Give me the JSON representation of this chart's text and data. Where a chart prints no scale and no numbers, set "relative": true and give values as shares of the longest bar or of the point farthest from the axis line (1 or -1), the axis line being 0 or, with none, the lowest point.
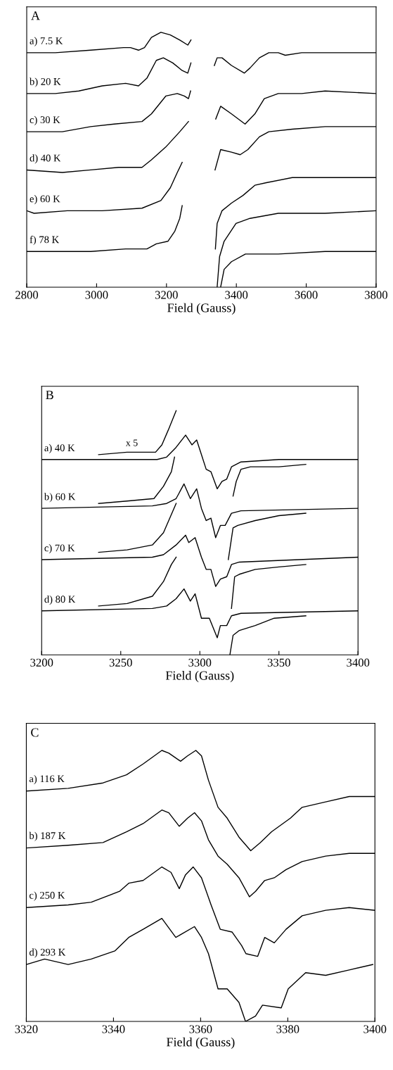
{
  "chart_data": [
    {
      "type": "line",
      "relative": true,
      "xlabel": "Field (Gauss)",
      "xlim": [
        2800,
        3800
      ],
      "xticks": [
        2800,
        3000,
        3200,
        3400,
        3600,
        3800
      ],
      "grid": false,
      "legend": false,
      "annotations": [
        "A"
      ],
      "series": [
        {
          "name": "a) 7.5 K",
          "color": "#000000",
          "x": [
            2800,
            2882,
            2983,
            3077,
            3097,
            3120,
            3137,
            3157,
            3184,
            3211,
            3238,
            3261,
            3270,
            3300,
            3337,
            3345,
            3359,
            3386,
            3423,
            3439,
            3466,
            3493,
            3520,
            3540,
            3587,
            3688,
            3800
          ],
          "values": [
            0.92,
            0.92,
            0.93,
            0.94,
            0.94,
            0.93,
            0.94,
            0.98,
            1.0,
            0.99,
            0.97,
            0.95,
            0.97,
            null,
            0.87,
            0.9,
            0.9,
            0.87,
            0.84,
            0.86,
            0.9,
            0.92,
            0.92,
            0.91,
            0.92,
            0.92,
            0.92
          ]
        },
        {
          "name": "b) 20 K",
          "color": "#000000",
          "x": [
            2800,
            2882,
            2949,
            3016,
            3083,
            3120,
            3144,
            3171,
            3191,
            3218,
            3245,
            3261,
            3270,
            3300,
            3341,
            3355,
            3386,
            3425,
            3453,
            3480,
            3520,
            3587,
            3654,
            3800
          ],
          "values": [
            0.76,
            0.76,
            0.77,
            0.79,
            0.8,
            0.79,
            0.82,
            0.89,
            0.9,
            0.88,
            0.85,
            0.84,
            0.88,
            null,
            0.66,
            0.71,
            0.68,
            0.64,
            0.68,
            0.74,
            0.76,
            0.76,
            0.77,
            0.76
          ]
        },
        {
          "name": "c) 30 K",
          "color": "#000000",
          "x": [
            2800,
            2902,
            2983,
            3050,
            3130,
            3157,
            3198,
            3231,
            3251,
            3263,
            3269,
            3300,
            3339,
            3355,
            3386,
            3411,
            3433,
            3466,
            3493,
            3560,
            3654,
            3800
          ],
          "values": [
            0.61,
            0.61,
            0.63,
            0.64,
            0.65,
            0.68,
            0.75,
            0.76,
            0.75,
            0.74,
            0.77,
            null,
            0.46,
            0.54,
            0.53,
            0.52,
            0.54,
            0.59,
            0.61,
            0.62,
            0.63,
            0.63
          ]
        },
        {
          "name": "d) 40 K",
          "color": "#000000",
          "x": [
            2800,
            2902,
            2983,
            3063,
            3130,
            3157,
            3198,
            3238,
            3263,
            3300,
            3340,
            3345,
            3359,
            3386,
            3419,
            3453,
            3486,
            3560,
            3654,
            3800
          ],
          "values": [
            0.46,
            0.45,
            0.46,
            0.47,
            0.47,
            0.5,
            0.55,
            0.61,
            0.65,
            null,
            0.15,
            0.25,
            0.3,
            0.33,
            0.36,
            0.4,
            0.41,
            0.43,
            0.43,
            0.43
          ]
        },
        {
          "name": "e) 60 K",
          "color": "#000000",
          "x": [
            2800,
            2821,
            2916,
            3016,
            3130,
            3184,
            3211,
            3231,
            3245,
            3300,
            3345,
            3352,
            3365,
            3399,
            3439,
            3520,
            3654,
            3800
          ],
          "values": [
            0.3,
            0.29,
            0.3,
            0.3,
            0.31,
            0.34,
            0.39,
            0.45,
            0.49,
            null,
            0.0,
            0.12,
            0.18,
            0.25,
            0.27,
            0.29,
            0.29,
            0.3
          ]
        },
        {
          "name": "f) 78 K",
          "color": "#000000",
          "x": [
            2800,
            2882,
            2983,
            3083,
            3144,
            3171,
            3204,
            3224,
            3238,
            3245,
            3300,
            3355,
            3365,
            3386,
            3426,
            3520,
            3654,
            3800
          ],
          "values": [
            0.14,
            0.14,
            0.14,
            0.15,
            0.15,
            0.17,
            0.18,
            0.22,
            0.27,
            0.32,
            null,
            0.0,
            0.07,
            0.1,
            0.13,
            0.13,
            0.14,
            0.14
          ]
        }
      ]
    },
    {
      "type": "line",
      "relative": true,
      "xlabel": "Field (Gauss)",
      "xlim": [
        3200,
        3400
      ],
      "xticks": [
        3200,
        3250,
        3300,
        3350,
        3400
      ],
      "grid": false,
      "legend": false,
      "annotations": [
        "B",
        "x 5"
      ],
      "series": [
        {
          "name": "a) 40 K",
          "color": "#000000",
          "x": [
            3200,
            3273,
            3279,
            3285,
            3291,
            3295,
            3298,
            3301,
            3304,
            3307,
            3311,
            3314,
            3317,
            3320,
            3326,
            3350,
            3400
          ],
          "values": [
            0.8,
            0.8,
            0.81,
            0.85,
            0.9,
            0.86,
            0.88,
            0.82,
            0.76,
            0.75,
            0.68,
            0.71,
            0.72,
            0.77,
            0.79,
            0.8,
            0.8
          ]
        },
        {
          "color": "#000000",
          "x": [
            3236,
            3254,
            3272,
            3276,
            3280,
            3285,
            3300,
            3321,
            3323,
            3326,
            3332,
            3350,
            3367
          ],
          "values": [
            0.82,
            0.83,
            0.83,
            0.86,
            0.92,
            1.0,
            null,
            0.65,
            0.71,
            0.76,
            0.77,
            0.77,
            0.78
          ]
        },
        {
          "name": "b) 60 K",
          "color": "#000000",
          "x": [
            3200,
            3270,
            3279,
            3285,
            3290,
            3294,
            3298,
            3301,
            3304,
            3307,
            3310,
            3313,
            3316,
            3320,
            3326,
            3400
          ],
          "values": [
            0.6,
            0.61,
            0.62,
            0.64,
            0.7,
            0.64,
            0.68,
            0.6,
            0.55,
            0.56,
            0.48,
            0.53,
            0.53,
            0.58,
            0.59,
            0.6
          ]
        },
        {
          "color": "#000000",
          "x": [
            3236,
            3254,
            3271,
            3277,
            3282,
            3284,
            3300,
            3318,
            3321,
            3324,
            3335,
            3350,
            3367
          ],
          "values": [
            0.62,
            0.63,
            0.64,
            0.69,
            0.75,
            0.81,
            null,
            0.39,
            0.52,
            0.53,
            0.55,
            0.57,
            0.58
          ]
        },
        {
          "name": "c) 70 K",
          "color": "#000000",
          "x": [
            3200,
            3270,
            3277,
            3285,
            3291,
            3293,
            3297,
            3301,
            3304,
            3307,
            3310,
            3313,
            3317,
            3320,
            3325,
            3400
          ],
          "values": [
            0.39,
            0.4,
            0.41,
            0.45,
            0.49,
            0.46,
            0.48,
            0.4,
            0.35,
            0.35,
            0.28,
            0.31,
            0.32,
            0.37,
            0.38,
            0.4
          ]
        },
        {
          "color": "#000000",
          "x": [
            3236,
            3254,
            3270,
            3277,
            3281,
            3285,
            3300,
            3320,
            3322,
            3325,
            3335,
            3350,
            3367
          ],
          "values": [
            0.42,
            0.43,
            0.45,
            0.5,
            0.56,
            0.62,
            null,
            0.19,
            0.32,
            0.33,
            0.35,
            0.36,
            0.37
          ]
        },
        {
          "name": "d) 80 K",
          "color": "#000000",
          "x": [
            3200,
            3270,
            3279,
            3285,
            3290,
            3294,
            3297,
            3301,
            3306,
            3311,
            3313,
            3317,
            3320,
            3326,
            3400
          ],
          "values": [
            0.18,
            0.19,
            0.2,
            0.23,
            0.27,
            0.22,
            0.25,
            0.15,
            0.15,
            0.07,
            0.12,
            0.12,
            0.16,
            0.17,
            0.18
          ]
        },
        {
          "color": "#000000",
          "x": [
            3236,
            3254,
            3270,
            3277,
            3282,
            3285,
            3300,
            3319,
            3321,
            3325,
            3335,
            3347,
            3367
          ],
          "values": [
            0.2,
            0.21,
            0.24,
            0.3,
            0.37,
            0.4,
            null,
            0.0,
            0.08,
            0.1,
            0.12,
            0.15,
            0.16
          ]
        }
      ]
    },
    {
      "type": "line",
      "relative": true,
      "xlabel": "Field (Gauss)",
      "xlim": [
        3320,
        3400
      ],
      "xticks": [
        3320,
        3340,
        3360,
        3380,
        3400
      ],
      "grid": false,
      "legend": false,
      "annotations": [
        "C"
      ],
      "series": [
        {
          "name": "a) 116 K",
          "color": "#000000",
          "x": [
            3320,
            3329.6,
            3337.6,
            3343,
            3346.8,
            3351.1,
            3352.7,
            3355.4,
            3357,
            3358.9,
            3360.2,
            3361.8,
            3364,
            3366.1,
            3368.8,
            3371.5,
            3373.7,
            3376.3,
            3380.6,
            3383.3,
            3388.7,
            3394.1,
            3400
          ],
          "values": [
            0.85,
            0.86,
            0.88,
            0.91,
            0.95,
            1.0,
            0.99,
            0.96,
            0.98,
            1.0,
            0.98,
            0.89,
            0.79,
            0.75,
            0.68,
            0.63,
            0.66,
            0.7,
            0.75,
            0.79,
            0.81,
            0.83,
            0.83
          ]
        },
        {
          "name": "b) 187 K",
          "color": "#000000",
          "x": [
            3320,
            3329.6,
            3337.6,
            3343,
            3346.8,
            3351.1,
            3352.7,
            3355.1,
            3357,
            3358.6,
            3360.2,
            3361.8,
            3364,
            3366.1,
            3368.8,
            3371.2,
            3372.6,
            3374.7,
            3376.9,
            3379.6,
            3383.3,
            3388.7,
            3394.1,
            3400
          ],
          "values": [
            0.64,
            0.65,
            0.66,
            0.7,
            0.73,
            0.78,
            0.77,
            0.72,
            0.75,
            0.77,
            0.74,
            0.67,
            0.61,
            0.58,
            0.53,
            0.46,
            0.48,
            0.52,
            0.53,
            0.56,
            0.59,
            0.61,
            0.62,
            0.62
          ]
        },
        {
          "name": "c) 250 K",
          "color": "#000000",
          "x": [
            3320,
            3329.6,
            3334.9,
            3341.4,
            3343.5,
            3346.8,
            3351.1,
            3353.2,
            3355.1,
            3356.5,
            3358.3,
            3360.2,
            3362.4,
            3364.5,
            3367.2,
            3369.4,
            3370.4,
            3373.1,
            3374.7,
            3376.9,
            3379.6,
            3383.3,
            3388.7,
            3394.1,
            3400
          ],
          "values": [
            0.42,
            0.43,
            0.44,
            0.48,
            0.51,
            0.52,
            0.57,
            0.55,
            0.49,
            0.54,
            0.57,
            0.53,
            0.43,
            0.34,
            0.33,
            0.28,
            0.25,
            0.24,
            0.31,
            0.29,
            0.34,
            0.39,
            0.41,
            0.42,
            0.41
          ]
        },
        {
          "name": "d) 293 K",
          "color": "#000000",
          "x": [
            3320,
            3324.2,
            3329.6,
            3334.9,
            3340.3,
            3343.5,
            3346.8,
            3351.1,
            3354.3,
            3358.6,
            3360.2,
            3361.8,
            3364,
            3366.1,
            3368.8,
            3370.3,
            3372.6,
            3374.2,
            3378.5,
            3380.1,
            3384.1,
            3388.7,
            3394.1,
            3399.5
          ],
          "values": [
            0.21,
            0.23,
            0.21,
            0.23,
            0.26,
            0.31,
            0.34,
            0.38,
            0.31,
            0.35,
            0.31,
            0.25,
            0.12,
            0.12,
            0.07,
            0.0,
            0.02,
            0.06,
            0.05,
            0.12,
            0.18,
            0.17,
            0.19,
            0.21
          ]
        }
      ]
    }
  ]
}
